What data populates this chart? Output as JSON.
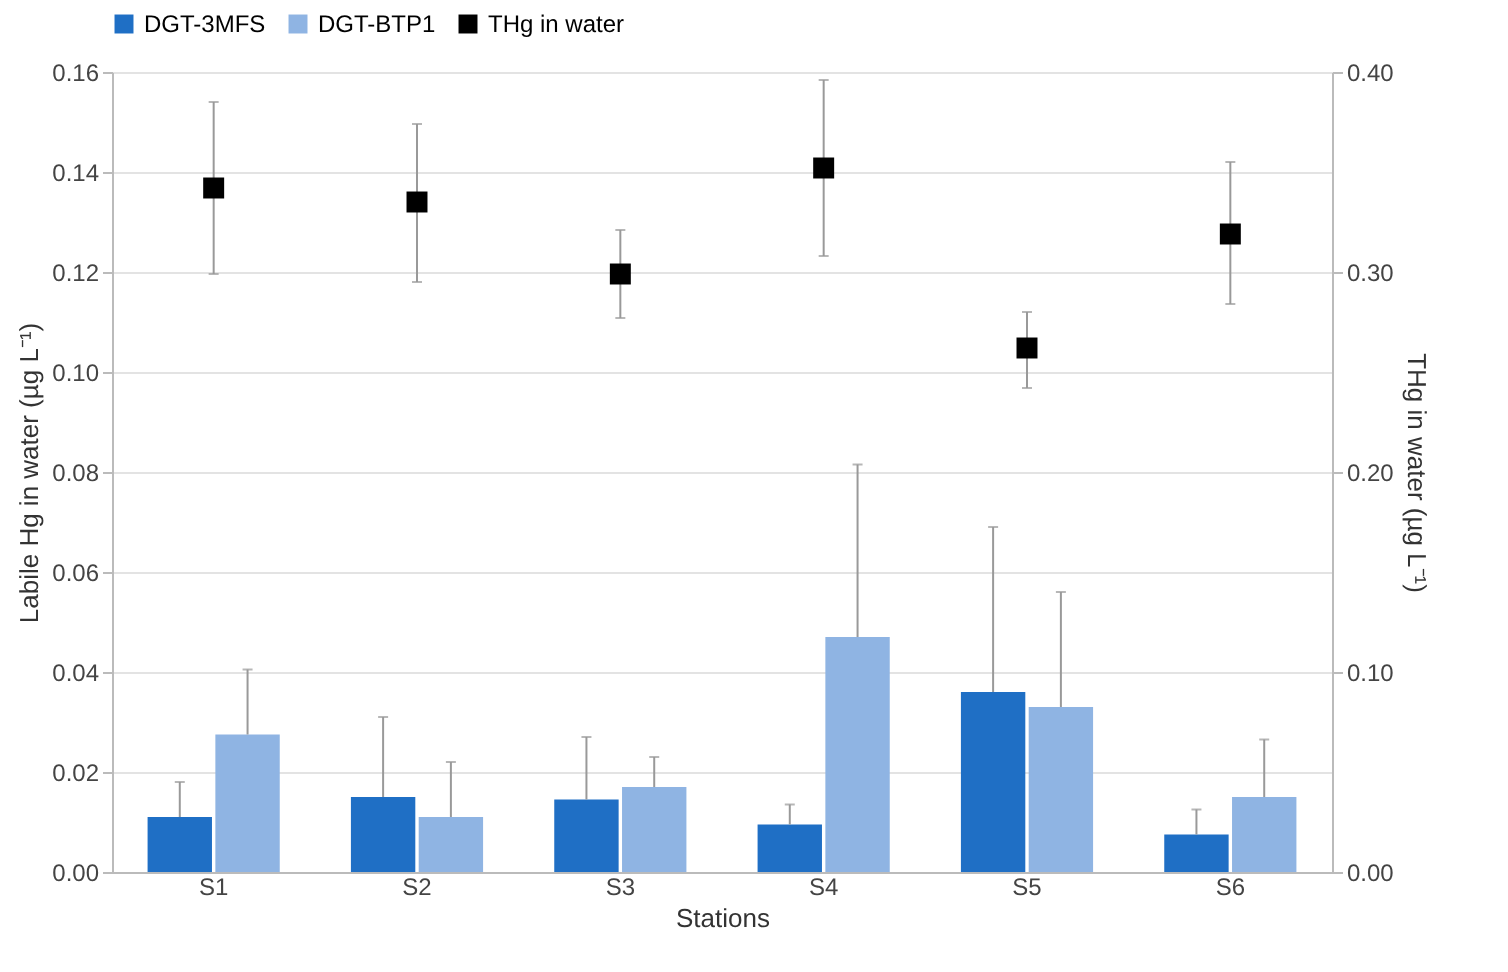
{
  "chart_data": {
    "type": "bar",
    "xlabel": "Stations",
    "ylabel": "Labile Hg in water (µg L⁻¹)",
    "y2label": "THg in water (µg L⁻¹)",
    "categories": [
      "S1",
      "S2",
      "S3",
      "S4",
      "S5",
      "S6"
    ],
    "series": [
      {
        "name": "DGT-3MFS",
        "color": "#1f6fc5",
        "values": [
          0.011,
          0.015,
          0.0145,
          0.0095,
          0.036,
          0.0075
        ],
        "errors": [
          [
            0.011,
            0.018
          ],
          [
            0.015,
            0.031
          ],
          [
            0.0145,
            0.027
          ],
          [
            0.0095,
            0.0135
          ],
          [
            0.036,
            0.069
          ],
          [
            0.0075,
            0.0125
          ]
        ]
      },
      {
        "name": "DGT-BTP1",
        "color": "#8fb4e3",
        "values": [
          0.0275,
          0.011,
          0.017,
          0.047,
          0.033,
          0.015
        ],
        "errors": [
          [
            0.0275,
            0.0405
          ],
          [
            0.011,
            0.022
          ],
          [
            0.017,
            0.023
          ],
          [
            0.047,
            0.0815
          ],
          [
            0.033,
            0.056
          ],
          [
            0.015,
            0.0265
          ]
        ]
      },
      {
        "name": "THg in water",
        "type": "scatter",
        "axis": "y2",
        "marker": "square",
        "color": "#000000",
        "values": [
          0.342,
          0.335,
          0.299,
          0.352,
          0.262,
          0.319
        ],
        "errors": [
          [
            0.299,
            0.385
          ],
          [
            0.295,
            0.374
          ],
          [
            0.277,
            0.321
          ],
          [
            0.308,
            0.396
          ],
          [
            0.242,
            0.28
          ],
          [
            0.284,
            0.355
          ]
        ]
      }
    ],
    "ylim": [
      0,
      0.16
    ],
    "yticks": [
      {
        "value": 0,
        "label": "0.00"
      },
      {
        "value": 0.02,
        "label": "0.02"
      },
      {
        "value": 0.04,
        "label": "0.04"
      },
      {
        "value": 0.06,
        "label": "0.06"
      },
      {
        "value": 0.08,
        "label": "0.08"
      },
      {
        "value": 0.1,
        "label": "0.10"
      },
      {
        "value": 0.12,
        "label": "0.12"
      },
      {
        "value": 0.14,
        "label": "0.14"
      },
      {
        "value": 0.16,
        "label": "0.16"
      }
    ],
    "y2lim": [
      0,
      0.4
    ],
    "y2ticks": [
      {
        "value": 0,
        "label": "0.00"
      },
      {
        "value": 0.1,
        "label": "0.10"
      },
      {
        "value": 0.2,
        "label": "0.20"
      },
      {
        "value": 0.3,
        "label": "0.30"
      },
      {
        "value": 0.4,
        "label": "0.40"
      }
    ],
    "grid": "y",
    "legend": "top"
  }
}
